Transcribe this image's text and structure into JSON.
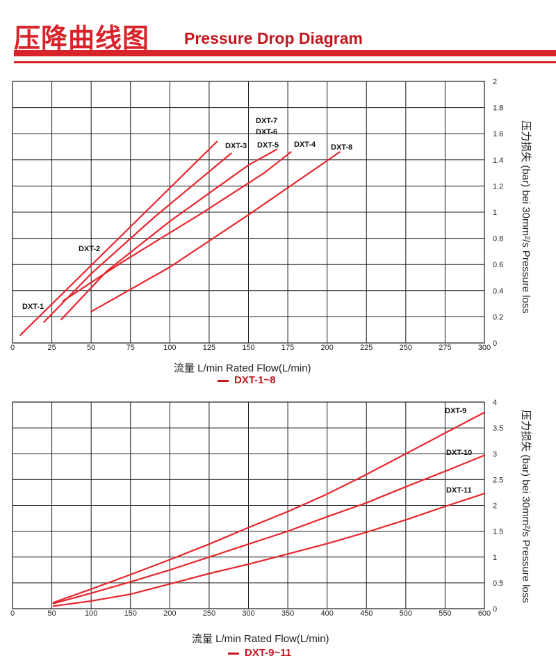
{
  "header": {
    "title_cn": "压降曲线图",
    "title_en": "Pressure Drop Diagram"
  },
  "colors": {
    "brand_red": "#d8232a",
    "curve": "#e8262d",
    "grid": "#1a1a1a"
  },
  "chart_data": [
    {
      "type": "line",
      "title": "DXT-1~8",
      "xlabel": "流量 L/min  Rated Flow(L/min)",
      "ylabel": "压力损失 (bar) bei 30mm²/s  Pressure loss",
      "xlim": [
        0,
        300
      ],
      "ylim": [
        0,
        2
      ],
      "xticks": [
        "0",
        "25",
        "50",
        "75",
        "100",
        "125",
        "150",
        "175",
        "200",
        "225",
        "250",
        "275",
        "300"
      ],
      "yticks": [
        "0",
        "0.2",
        "0.4",
        "0.6",
        "0.8",
        "1",
        "1.2",
        "1.4",
        "1.6",
        "1.8",
        "2"
      ],
      "grid": true,
      "series": [
        {
          "name": "DXT-1",
          "x": [
            5,
            130
          ],
          "y": [
            0.06,
            1.54
          ]
        },
        {
          "name": "DXT-2",
          "x": [
            20,
            50,
            90,
            139
          ],
          "y": [
            0.16,
            0.53,
            0.96,
            1.45
          ]
        },
        {
          "name": "DXT-3",
          "x": [
            31,
            60,
            100,
            150,
            168
          ],
          "y": [
            0.18,
            0.55,
            0.93,
            1.36,
            1.48
          ]
        },
        {
          "name": "DXT-4",
          "x": [
            32,
            70,
            120,
            160,
            177
          ],
          "y": [
            0.32,
            0.62,
            0.99,
            1.3,
            1.46
          ]
        },
        {
          "name": "DXT-7",
          "x": [],
          "y": []
        },
        {
          "name": "DXT-6",
          "x": [],
          "y": []
        },
        {
          "name": "DXT-5",
          "x": [],
          "y": []
        },
        {
          "name": "DXT-8",
          "x": [
            50,
            100,
            150,
            208
          ],
          "y": [
            0.24,
            0.58,
            0.98,
            1.46
          ]
        }
      ]
    },
    {
      "type": "line",
      "title": "DXT-9~11",
      "xlabel": "流量 L/min  Rated Flow(L/min)",
      "ylabel": "压力损失 (bar) bei 30mm²/s  Pressure loss",
      "xlim": [
        0,
        600
      ],
      "ylim": [
        0,
        4
      ],
      "xticks": [
        "0",
        "50",
        "100",
        "150",
        "200",
        "250",
        "300",
        "350",
        "400",
        "450",
        "500",
        "550",
        "600"
      ],
      "yticks": [
        "0",
        "0.5",
        "1",
        "1.5",
        "2",
        "2.5",
        "3",
        "3.5",
        "4"
      ],
      "grid": true,
      "series": [
        {
          "name": "DXT-9",
          "x": [
            52,
            100,
            150,
            200,
            250,
            300,
            350,
            400,
            450,
            500,
            550,
            600
          ],
          "y": [
            0.12,
            0.38,
            0.66,
            0.95,
            1.25,
            1.57,
            1.88,
            2.22,
            2.6,
            3.0,
            3.4,
            3.8
          ]
        },
        {
          "name": "DXT-10",
          "x": [
            52,
            100,
            150,
            200,
            250,
            300,
            350,
            400,
            450,
            500,
            550,
            600
          ],
          "y": [
            0.1,
            0.3,
            0.52,
            0.75,
            1.0,
            1.25,
            1.5,
            1.78,
            2.05,
            2.36,
            2.66,
            2.97
          ]
        },
        {
          "name": "DXT-11",
          "x": [
            52,
            100,
            150,
            200,
            250,
            300,
            350,
            400,
            450,
            500,
            550,
            600
          ],
          "y": [
            0.05,
            0.15,
            0.28,
            0.48,
            0.68,
            0.86,
            1.06,
            1.26,
            1.48,
            1.72,
            1.98,
            2.23
          ]
        }
      ]
    }
  ]
}
